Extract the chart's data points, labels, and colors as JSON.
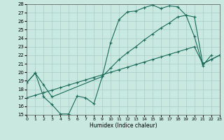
{
  "background_color": "#c8e8e0",
  "grid_color": "#a8ccc8",
  "line_color": "#1a6b5a",
  "xlim": [
    0,
    23
  ],
  "ylim": [
    15,
    28
  ],
  "xlabel": "Humidex (Indice chaleur)",
  "xticks": [
    0,
    1,
    2,
    3,
    4,
    5,
    6,
    7,
    8,
    9,
    10,
    11,
    12,
    13,
    14,
    15,
    16,
    17,
    18,
    19,
    20,
    21,
    22,
    23
  ],
  "yticks": [
    15,
    16,
    17,
    18,
    19,
    20,
    21,
    22,
    23,
    24,
    25,
    26,
    27,
    28
  ],
  "line1_x": [
    0,
    1,
    2,
    3,
    4,
    5,
    6,
    7,
    8,
    9,
    10,
    11,
    12,
    13,
    14,
    15,
    16,
    17,
    18,
    19,
    20,
    21,
    22
  ],
  "line1_y": [
    18.8,
    19.9,
    17.1,
    16.2,
    15.1,
    15.1,
    17.2,
    17.0,
    16.3,
    19.5,
    23.5,
    26.2,
    27.1,
    27.2,
    27.6,
    27.9,
    27.5,
    27.8,
    27.7,
    26.7,
    24.2,
    20.8,
    22.0
  ],
  "line2_x": [
    0,
    1,
    2,
    3,
    4,
    5,
    6,
    7,
    8,
    9,
    10,
    11,
    12,
    13,
    14,
    15,
    16,
    17,
    18,
    19,
    20,
    21,
    22,
    23
  ],
  "line2_y": [
    17.0,
    17.3,
    17.6,
    17.9,
    18.2,
    18.5,
    18.8,
    19.1,
    19.4,
    19.7,
    20.0,
    20.3,
    20.6,
    20.9,
    21.2,
    21.5,
    21.8,
    22.1,
    22.4,
    22.7,
    23.0,
    21.0,
    21.5,
    22.0
  ],
  "line3_x": [
    0,
    1,
    2,
    3,
    9,
    10,
    11,
    12,
    13,
    14,
    15,
    16,
    17,
    18,
    19,
    20,
    21,
    22,
    23
  ],
  "line3_y": [
    18.8,
    19.9,
    18.5,
    17.1,
    19.5,
    20.5,
    21.5,
    22.3,
    23.0,
    23.8,
    24.5,
    25.2,
    25.8,
    26.5,
    26.7,
    26.5,
    21.0,
    21.5,
    22.0
  ]
}
